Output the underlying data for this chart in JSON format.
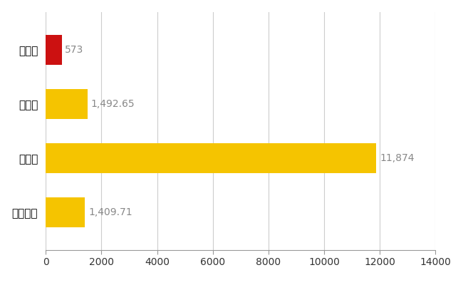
{
  "categories": [
    "全国平均",
    "県最大",
    "県平均",
    "東金市"
  ],
  "values": [
    1409.71,
    11874,
    1492.65,
    573
  ],
  "bar_colors": [
    "#F5C400",
    "#F5C400",
    "#F5C400",
    "#CC1111"
  ],
  "labels": [
    "1,409.71",
    "11,874",
    "1,492.65",
    "573"
  ],
  "xlim": [
    0,
    14000
  ],
  "xticks": [
    0,
    2000,
    4000,
    6000,
    8000,
    10000,
    12000,
    14000
  ],
  "background_color": "#ffffff",
  "grid_color": "#cccccc",
  "bar_height": 0.55,
  "label_fontsize": 10,
  "tick_fontsize": 10,
  "ylabel_fontsize": 11,
  "label_color": "#888888"
}
